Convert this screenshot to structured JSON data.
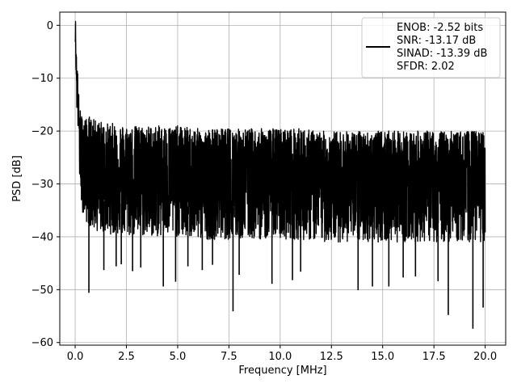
{
  "chart_data": {
    "type": "line",
    "title": "",
    "xlabel": "Frequency [MHz]",
    "ylabel": "PSD [dB]",
    "xlim": [
      -0.75,
      21.0
    ],
    "ylim": [
      -60.5,
      2.5
    ],
    "xticks": [
      0.0,
      2.5,
      5.0,
      7.5,
      10.0,
      12.5,
      15.0,
      17.5,
      20.0
    ],
    "xtick_labels": [
      "0.0",
      "2.5",
      "5.0",
      "7.5",
      "10.0",
      "12.5",
      "15.0",
      "17.5",
      "20.0"
    ],
    "yticks": [
      0,
      -10,
      -20,
      -30,
      -40,
      -50,
      -60
    ],
    "ytick_labels": [
      "0",
      "−10",
      "−20",
      "−30",
      "−40",
      "−50",
      "−60"
    ],
    "grid": true,
    "legend_position": "top-right",
    "legend_lines": [
      "ENOB: -2.52 bits",
      "SNR: -13.17 dB",
      "SINAD: -13.39 dB",
      "SFDR: 2.02"
    ],
    "series": [
      {
        "color": "#000000",
        "x": [
          0.0,
          0.02,
          0.04,
          0.06,
          0.08,
          0.1,
          0.14,
          0.2,
          0.3,
          0.4,
          0.5,
          0.6,
          0.7,
          0.8,
          1.0,
          1.2,
          1.5,
          2.0,
          2.5,
          3.0,
          4.0,
          5.0,
          6.0,
          7.0,
          8.0,
          9.0,
          10.0,
          11.0,
          12.0,
          13.0,
          14.0,
          15.0,
          16.0,
          17.0,
          18.0,
          19.0,
          20.0
        ],
        "y": [
          -3.0,
          0.0,
          -8.0,
          -6.5,
          -12.0,
          -10.0,
          -14.0,
          -20.0,
          -24.0,
          -25.0,
          -25.5,
          -26.0,
          -26.0,
          -26.5,
          -27.0,
          -27.0,
          -27.5,
          -27.5,
          -28.0,
          -28.0,
          -28.0,
          -28.0,
          -28.5,
          -28.5,
          -28.5,
          -28.5,
          -28.5,
          -28.5,
          -29.0,
          -29.0,
          -29.0,
          -29.0,
          -29.0,
          -29.0,
          -29.0,
          -29.0,
          -29.0
        ],
        "spread_upper": [
          1,
          1,
          2,
          2,
          3,
          3,
          4,
          5,
          7,
          8,
          8,
          8,
          9,
          9,
          9,
          9,
          9,
          9,
          9,
          9,
          9,
          9,
          9,
          9,
          9,
          9,
          9,
          9,
          9,
          9,
          9,
          9,
          9,
          9,
          9,
          9,
          9
        ],
        "spread_lower": [
          1,
          1,
          2,
          3,
          4,
          5,
          6,
          8,
          10,
          11,
          11,
          12,
          12,
          12,
          12,
          12,
          12,
          12,
          12,
          12,
          12,
          12,
          12,
          12,
          12,
          12,
          12,
          12,
          12,
          12,
          12,
          12,
          12,
          12,
          12,
          12,
          12
        ]
      }
    ],
    "deep_dips": [
      {
        "x": 0.67,
        "y": -50.6
      },
      {
        "x": 1.4,
        "y": -46.3
      },
      {
        "x": 2.0,
        "y": -45.6
      },
      {
        "x": 2.25,
        "y": -45.2
      },
      {
        "x": 2.8,
        "y": -46.5
      },
      {
        "x": 3.2,
        "y": -45.8
      },
      {
        "x": 4.3,
        "y": -49.4
      },
      {
        "x": 4.9,
        "y": -48.5
      },
      {
        "x": 5.5,
        "y": -45.6
      },
      {
        "x": 6.2,
        "y": -46.3
      },
      {
        "x": 6.7,
        "y": -45.3
      },
      {
        "x": 7.7,
        "y": -54.1
      },
      {
        "x": 8.0,
        "y": -47.2
      },
      {
        "x": 9.6,
        "y": -48.9
      },
      {
        "x": 10.6,
        "y": -48.2
      },
      {
        "x": 11.0,
        "y": -46.6
      },
      {
        "x": 13.8,
        "y": -50.1
      },
      {
        "x": 14.5,
        "y": -49.4
      },
      {
        "x": 15.3,
        "y": -49.4
      },
      {
        "x": 16.0,
        "y": -47.7
      },
      {
        "x": 16.6,
        "y": -47.5
      },
      {
        "x": 17.7,
        "y": -48.4
      },
      {
        "x": 18.2,
        "y": -54.8
      },
      {
        "x": 19.4,
        "y": -57.4
      },
      {
        "x": 19.9,
        "y": -53.4
      }
    ]
  }
}
